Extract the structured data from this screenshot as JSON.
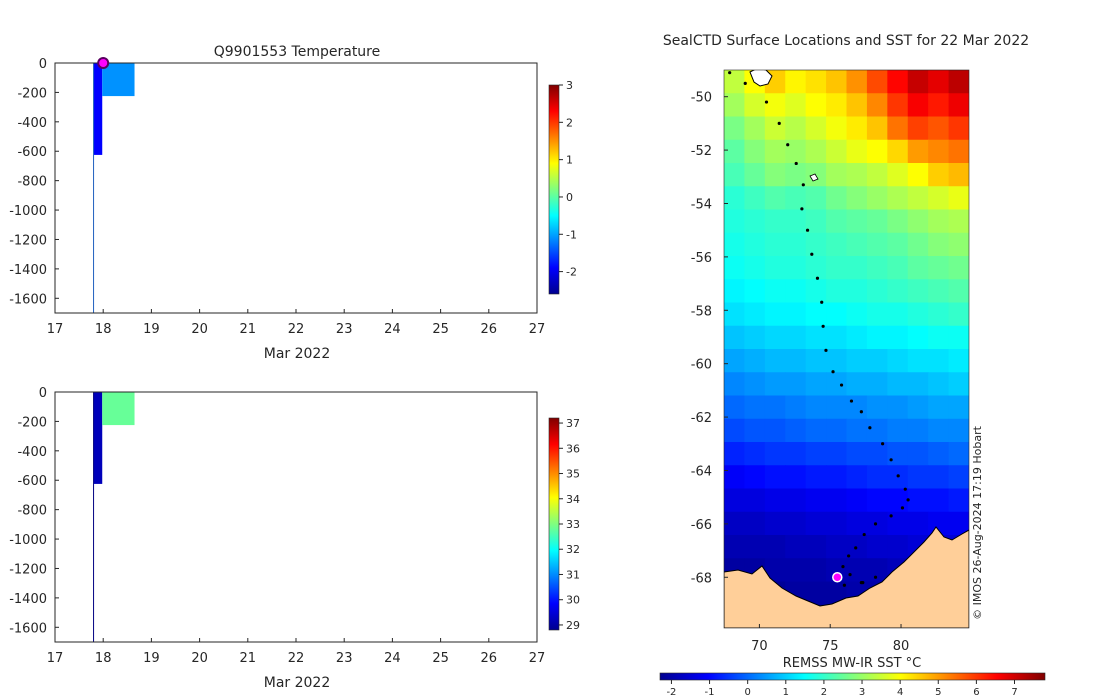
{
  "chart_data": [
    {
      "type": "heatmap",
      "title": "Q9901553  Temperature",
      "xlabel": "Mar 2022",
      "ylabel": "",
      "xlim": [
        17,
        27
      ],
      "ylim": [
        -1700,
        0
      ],
      "xticks": [
        "17",
        "18",
        "19",
        "20",
        "21",
        "22",
        "23",
        "24",
        "25",
        "26",
        "27"
      ],
      "yticks": [
        "0",
        "-200",
        "-400",
        "-600",
        "-800",
        "-1000",
        "-1200",
        "-1400",
        "-1600"
      ],
      "colorbar": {
        "min": -2.6,
        "max": 3,
        "ticks": [
          "3",
          "2",
          "1",
          "0",
          "-1",
          "-2"
        ]
      },
      "cells": [
        {
          "x0": 17.8,
          "x1": 17.98,
          "y0": 0,
          "y1": -625,
          "value": -1.9
        },
        {
          "x0": 17.98,
          "x1": 18.65,
          "y0": 0,
          "y1": -225,
          "value": -1.1
        }
      ],
      "line_x": 17.8,
      "marker": {
        "x": 18.0,
        "y": 0
      }
    },
    {
      "type": "heatmap",
      "title": "",
      "xlabel": "Mar 2022",
      "ylabel": "",
      "xlim": [
        17,
        27
      ],
      "ylim": [
        -1700,
        0
      ],
      "xticks": [
        "17",
        "18",
        "19",
        "20",
        "21",
        "22",
        "23",
        "24",
        "25",
        "26",
        "27"
      ],
      "yticks": [
        "0",
        "-200",
        "-400",
        "-600",
        "-800",
        "-1000",
        "-1200",
        "-1400",
        "-1600"
      ],
      "colorbar": {
        "min": 28.8,
        "max": 37.2,
        "ticks": [
          "37",
          "36",
          "35",
          "34",
          "33",
          "32",
          "31",
          "30",
          "29"
        ]
      },
      "cells": [
        {
          "x0": 17.8,
          "x1": 17.98,
          "y0": 0,
          "y1": -625,
          "value": 29.2
        },
        {
          "x0": 17.98,
          "x1": 18.65,
          "y0": 0,
          "y1": -225,
          "value": 32.8
        }
      ],
      "line_x": 17.8
    },
    {
      "type": "heatmap",
      "title": "SealCTD Surface Locations and SST for 22 Mar 2022",
      "xlabel": "REMSS MW-IR SST °C",
      "xlim": [
        67.5,
        84.8
      ],
      "ylim": [
        -69.9,
        -49
      ],
      "xticks": [
        "70",
        "75",
        "80"
      ],
      "yticks": [
        "-50",
        "-52",
        "-54",
        "-56",
        "-58",
        "-60",
        "-62",
        "-64",
        "-66",
        "-68"
      ],
      "colorbar": {
        "min": -2.3,
        "max": 7.8,
        "ticks": [
          "-2",
          "-1",
          "0",
          "1",
          "2",
          "3",
          "4",
          "5",
          "6",
          "7"
        ]
      },
      "credit": "© IMOS 26-Aug-2024 17:19 Hobart",
      "track_lon": [
        67.9,
        69.0,
        70.5,
        71.4,
        72.0,
        72.6,
        73.1,
        73.0,
        73.4,
        73.7,
        74.1,
        74.4,
        74.5,
        74.7,
        75.2,
        75.8,
        76.5,
        77.2,
        77.8,
        78.7,
        79.3,
        79.8,
        80.3,
        80.5,
        80.1,
        79.3,
        78.2,
        77.4,
        76.8,
        76.3,
        75.9,
        76.4,
        77.3,
        78.2,
        77.2,
        76.0
      ],
      "track_lat": [
        -49.1,
        -49.5,
        -50.2,
        -51.0,
        -51.8,
        -52.5,
        -53.3,
        -54.2,
        -55.0,
        -55.9,
        -56.8,
        -57.7,
        -58.6,
        -59.5,
        -60.3,
        -60.8,
        -61.4,
        -61.8,
        -62.4,
        -63.0,
        -63.6,
        -64.2,
        -64.7,
        -65.1,
        -65.4,
        -65.7,
        -66.0,
        -66.4,
        -66.9,
        -67.2,
        -67.6,
        -67.9,
        -68.2,
        -68.0,
        -68.2,
        -68.3
      ],
      "marker": {
        "lon": 75.5,
        "lat": -68.0
      },
      "sst_grid": [
        [
          3.4,
          4.0,
          4.5,
          4.1,
          4.3,
          4.6,
          5.1,
          5.8,
          6.5,
          7.1,
          6.8,
          7.2
        ],
        [
          3.1,
          3.6,
          3.9,
          3.7,
          4.0,
          4.2,
          4.6,
          5.2,
          6.0,
          6.6,
          6.3,
          6.7
        ],
        [
          2.7,
          3.1,
          3.5,
          3.3,
          3.6,
          3.9,
          4.2,
          4.6,
          5.4,
          5.9,
          5.7,
          6.0
        ],
        [
          2.4,
          2.8,
          3.1,
          3.0,
          3.2,
          3.5,
          3.8,
          4.0,
          4.4,
          5.0,
          5.2,
          5.4
        ],
        [
          2.2,
          2.5,
          2.8,
          2.7,
          2.8,
          3.1,
          3.2,
          3.4,
          3.7,
          4.0,
          4.5,
          4.7
        ],
        [
          1.9,
          2.1,
          2.3,
          2.2,
          2.3,
          2.6,
          2.8,
          3.0,
          3.2,
          3.4,
          3.6,
          3.8
        ],
        [
          1.8,
          1.9,
          2.0,
          2.0,
          2.1,
          2.3,
          2.4,
          2.5,
          2.7,
          2.9,
          3.1,
          3.2
        ],
        [
          1.7,
          1.8,
          1.9,
          1.9,
          2.0,
          2.1,
          2.2,
          2.3,
          2.4,
          2.6,
          2.8,
          2.9
        ],
        [
          1.6,
          1.7,
          1.8,
          1.8,
          1.9,
          2.0,
          2.0,
          2.1,
          2.2,
          2.4,
          2.5,
          2.6
        ],
        [
          1.4,
          1.5,
          1.6,
          1.6,
          1.7,
          1.8,
          1.8,
          1.9,
          2.0,
          2.1,
          2.2,
          2.3
        ],
        [
          1.2,
          1.3,
          1.4,
          1.4,
          1.5,
          1.5,
          1.6,
          1.7,
          1.7,
          1.8,
          1.9,
          2.0
        ],
        [
          0.9,
          1.0,
          1.1,
          1.1,
          1.2,
          1.2,
          1.3,
          1.4,
          1.4,
          1.5,
          1.6,
          1.6
        ],
        [
          0.6,
          0.7,
          0.8,
          0.8,
          0.9,
          0.9,
          1.0,
          1.0,
          1.1,
          1.2,
          1.2,
          1.3
        ],
        [
          0.3,
          0.4,
          0.5,
          0.5,
          0.6,
          0.6,
          0.7,
          0.7,
          0.8,
          0.8,
          0.9,
          1.0
        ],
        [
          0.0,
          0.1,
          0.1,
          0.2,
          0.3,
          0.3,
          0.3,
          0.4,
          0.4,
          0.5,
          0.6,
          0.6
        ],
        [
          -0.3,
          -0.2,
          -0.2,
          -0.1,
          0.0,
          0.0,
          0.1,
          0.1,
          0.2,
          0.2,
          0.3,
          0.3
        ],
        [
          -0.7,
          -0.6,
          -0.5,
          -0.5,
          -0.4,
          -0.4,
          -0.3,
          -0.3,
          -0.2,
          -0.2,
          -0.1,
          0.0
        ],
        [
          -1.1,
          -1.0,
          -0.9,
          -0.9,
          -0.8,
          -0.8,
          -0.7,
          -0.6,
          -0.6,
          -0.5,
          -0.5,
          -0.4
        ],
        [
          -1.4,
          -1.4,
          -1.3,
          -1.3,
          -1.2,
          -1.2,
          -1.1,
          -1.0,
          -1.0,
          -0.9,
          -0.9,
          -0.8
        ],
        [
          -1.7,
          -1.7,
          -1.6,
          -1.6,
          -1.5,
          -1.5,
          -1.4,
          -1.4,
          -1.3,
          -1.3,
          -1.2,
          -1.2
        ],
        [
          -1.9,
          -1.9,
          -1.9,
          -1.8,
          -1.8,
          -1.7,
          -1.7,
          -1.6,
          -1.6,
          -1.5,
          -1.5,
          -1.5
        ],
        [
          -2.1,
          -2.1,
          -2.0,
          -2.0,
          -2.0,
          -1.9,
          -1.9,
          -1.9,
          -1.8,
          -1.8,
          -1.8,
          -1.7
        ],
        [
          -2.2,
          -2.2,
          -2.2,
          -2.1,
          -2.1,
          -2.1,
          -2.0,
          -2.0,
          -2.0,
          -2.0,
          -1.9,
          -1.9
        ],
        [
          -2.3,
          -2.3,
          -2.2,
          -2.2,
          -2.2,
          -2.2,
          -2.2,
          -2.1,
          -2.1,
          -2.1,
          -2.1,
          -2.0
        ]
      ]
    }
  ]
}
